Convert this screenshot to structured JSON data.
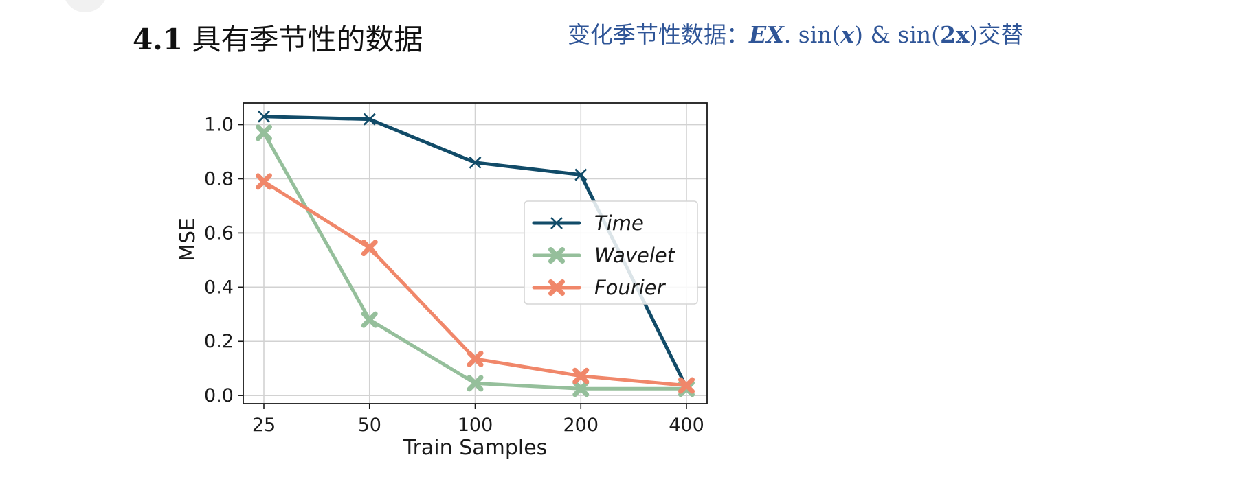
{
  "slide": {
    "title_number": "4.1",
    "title_text": "具有季节性的数据",
    "subtitle": {
      "prefix": "变化季节性数据：",
      "ex": "EX",
      "dot": ".",
      "sin1_fn": "sin(",
      "sin1_arg": "x",
      "sin1_close": ")",
      "amp": "&",
      "sin2_fn": "sin(",
      "sin2_arg": "2x",
      "sin2_close": ")",
      "suffix": "交替"
    }
  },
  "chart_data": {
    "type": "line",
    "categories": [
      "25",
      "50",
      "100",
      "200",
      "400"
    ],
    "xlabel": "Train Samples",
    "ylabel": "MSE",
    "ylim": [
      -0.03,
      1.08
    ],
    "yticks": [
      "0.0",
      "0.2",
      "0.4",
      "0.6",
      "0.8",
      "1.0"
    ],
    "grid": true,
    "legend_position": "center-right",
    "series": [
      {
        "name": "Time",
        "values": [
          1.03,
          1.02,
          0.86,
          0.815,
          0.03
        ],
        "color": "#114b68",
        "marker": "x"
      },
      {
        "name": "Wavelet",
        "values": [
          0.97,
          0.28,
          0.045,
          0.025,
          0.025
        ],
        "color": "#95bf9b",
        "marker": "X"
      },
      {
        "name": "Fourier",
        "values": [
          0.79,
          0.545,
          0.135,
          0.072,
          0.037
        ],
        "color": "#f0876a",
        "marker": "X"
      }
    ]
  }
}
